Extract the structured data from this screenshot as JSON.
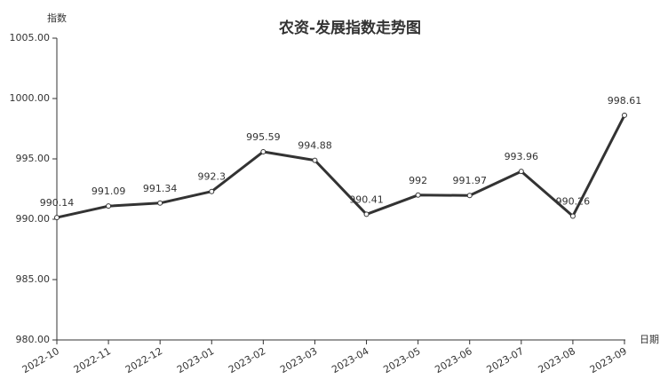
{
  "chart_data": {
    "type": "line",
    "title": "农资-发展指数走势图",
    "y_label": "指数",
    "x_label": "日期",
    "categories": [
      "2022-10",
      "2022-11",
      "2022-12",
      "2023-01",
      "2023-02",
      "2023-03",
      "2023-04",
      "2023-05",
      "2023-06",
      "2023-07",
      "2023-08",
      "2023-09"
    ],
    "values": [
      990.14,
      991.09,
      991.34,
      992.3,
      995.59,
      994.88,
      990.41,
      992,
      991.97,
      993.96,
      990.26,
      998.61
    ],
    "color": "#333333",
    "ylim": [
      980,
      1005
    ],
    "yticks": [
      {
        "value": 980,
        "label": "980.00"
      },
      {
        "value": 985,
        "label": "985.00"
      },
      {
        "value": 990,
        "label": "990.00"
      },
      {
        "value": 995,
        "label": "995.00"
      },
      {
        "value": 1000,
        "label": "1000.00"
      },
      {
        "value": 1005,
        "label": "1005.00"
      }
    ],
    "grid": false
  }
}
